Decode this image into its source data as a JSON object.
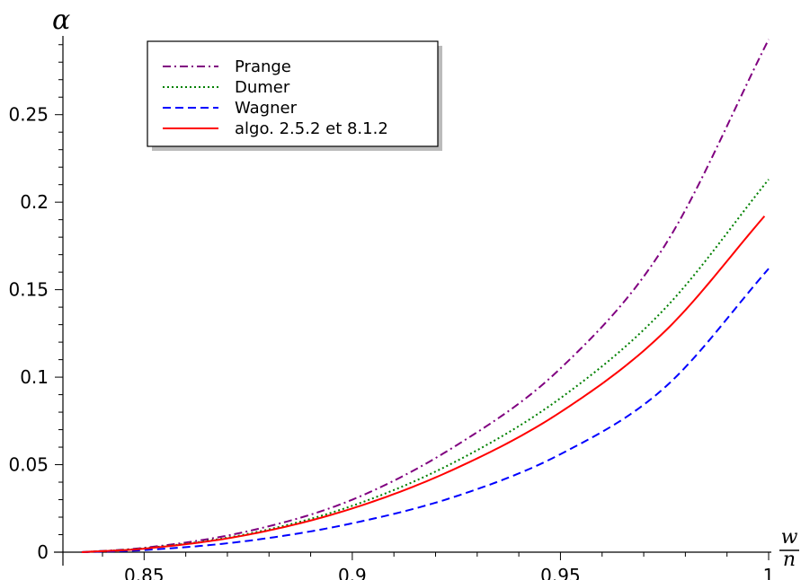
{
  "chart_data": {
    "type": "line",
    "title": "",
    "xlabel": {
      "numerator": "w",
      "denominator": "n"
    },
    "ylabel": "α",
    "xlim": [
      0.8305,
      1.0
    ],
    "ylim": [
      0.0,
      0.295
    ],
    "x_ticks": [
      0.85,
      0.9,
      0.95,
      1.0
    ],
    "x_tick_labels": [
      "0.85",
      "0.9",
      "0.95",
      "1"
    ],
    "y_ticks": [
      0,
      0.05,
      0.1,
      0.15,
      0.2,
      0.25
    ],
    "y_tick_labels": [
      "0",
      "0.05",
      "0.1",
      "0.15",
      "0.2",
      "0.25"
    ],
    "grid": false,
    "legend_position": "top-left",
    "series": [
      {
        "name": "Prange",
        "color": "#800080",
        "dash": "dashdot",
        "x": [
          0.835,
          0.85,
          0.875,
          0.9,
          0.925,
          0.95,
          0.975,
          1.0
        ],
        "y": [
          0.0,
          0.0025,
          0.012,
          0.03,
          0.061,
          0.105,
          0.175,
          0.293
        ]
      },
      {
        "name": "Dumer",
        "color": "#008000",
        "dash": "dotted",
        "x": [
          0.835,
          0.85,
          0.875,
          0.9,
          0.925,
          0.95,
          0.975,
          1.0
        ],
        "y": [
          0.0,
          0.0022,
          0.0105,
          0.0265,
          0.052,
          0.088,
          0.139,
          0.213
        ]
      },
      {
        "name": "Wagner",
        "color": "#0000ff",
        "dash": "dashed",
        "x": [
          0.835,
          0.85,
          0.875,
          0.9,
          0.925,
          0.95,
          0.975,
          1.0
        ],
        "y": [
          0.0,
          0.0012,
          0.0065,
          0.0165,
          0.032,
          0.056,
          0.094,
          0.162
        ]
      },
      {
        "name": "algo. 2.5.2 et 8.1.2",
        "color": "#ff0000",
        "dash": "solid",
        "x": [
          0.835,
          0.85,
          0.875,
          0.9,
          0.925,
          0.95,
          0.975,
          0.999
        ],
        "y": [
          0.0,
          0.002,
          0.01,
          0.025,
          0.048,
          0.08,
          0.126,
          0.192
        ]
      }
    ]
  }
}
